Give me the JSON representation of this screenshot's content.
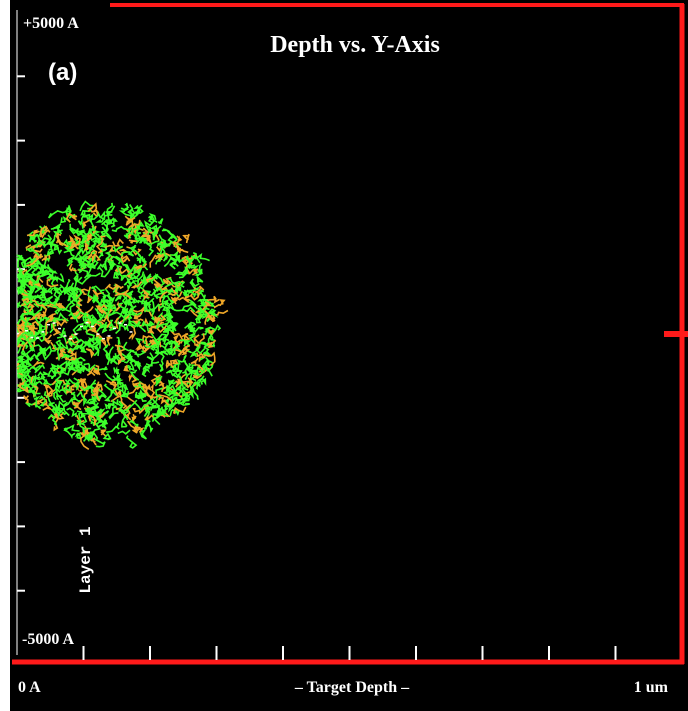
{
  "plot": {
    "title": "Depth vs. Y-Axis",
    "panel_label": "(a)",
    "y_top_label": "+5000 A",
    "y_bottom_label": "-5000 A",
    "layer_label": "Layer 1",
    "x_left_label": "0 A",
    "x_axis_title": "– Target Depth –",
    "x_right_label": "1 um"
  }
}
